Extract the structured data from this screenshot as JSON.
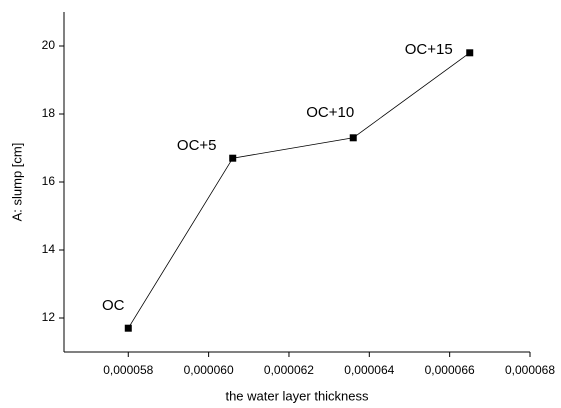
{
  "chart_data": {
    "type": "line",
    "x_label": "the water layer thickness",
    "y_label": "A: slump [cm]",
    "x": [
      5.8e-05,
      6.06e-05,
      6.36e-05,
      6.65e-05
    ],
    "series": [
      {
        "name": "A: slump",
        "color": "#000000",
        "values": [
          11.7,
          16.7,
          17.3,
          19.8
        ],
        "labels": [
          "OC",
          "OC+5",
          "OC+10",
          "OC+15"
        ]
      }
    ],
    "xlim": [
      5.64e-05,
      6.8e-05
    ],
    "xticks": [
      {
        "value": 5.8e-05,
        "label": "0,000058"
      },
      {
        "value": 6e-05,
        "label": "0,000060"
      },
      {
        "value": 6.2e-05,
        "label": "0,000062"
      },
      {
        "value": 6.4e-05,
        "label": "0,000064"
      },
      {
        "value": 6.6e-05,
        "label": "0,000066"
      },
      {
        "value": 6.8e-05,
        "label": "0,000068"
      }
    ],
    "ylim": [
      11,
      21
    ],
    "yticks": [
      12,
      14,
      16,
      18,
      20
    ],
    "grid": false
  }
}
